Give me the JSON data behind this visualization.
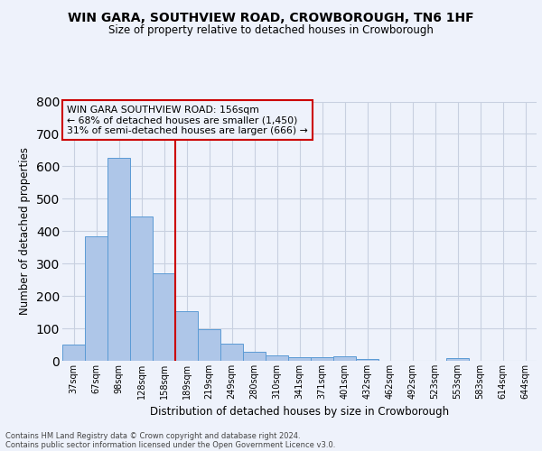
{
  "title1": "WIN GARA, SOUTHVIEW ROAD, CROWBOROUGH, TN6 1HF",
  "title2": "Size of property relative to detached houses in Crowborough",
  "xlabel": "Distribution of detached houses by size in Crowborough",
  "ylabel": "Number of detached properties",
  "footer1": "Contains HM Land Registry data © Crown copyright and database right 2024.",
  "footer2": "Contains public sector information licensed under the Open Government Licence v3.0.",
  "annotation_line1": "WIN GARA SOUTHVIEW ROAD: 156sqm",
  "annotation_line2": "← 68% of detached houses are smaller (1,450)",
  "annotation_line3": "31% of semi-detached houses are larger (666) →",
  "bar_labels": [
    "37sqm",
    "67sqm",
    "98sqm",
    "128sqm",
    "158sqm",
    "189sqm",
    "219sqm",
    "249sqm",
    "280sqm",
    "310sqm",
    "341sqm",
    "371sqm",
    "401sqm",
    "432sqm",
    "462sqm",
    "492sqm",
    "523sqm",
    "553sqm",
    "583sqm",
    "614sqm",
    "644sqm"
  ],
  "bar_values": [
    50,
    385,
    625,
    445,
    270,
    153,
    97,
    52,
    28,
    18,
    11,
    11,
    14,
    6,
    0,
    0,
    0,
    7,
    0,
    0,
    0
  ],
  "bar_color": "#aec6e8",
  "bar_edge_color": "#5b9bd5",
  "vline_x": 4.5,
  "vline_color": "#cc0000",
  "annotation_box_color": "#cc0000",
  "background_color": "#eef2fb",
  "grid_color": "#c8d0e0",
  "ylim": [
    0,
    800
  ],
  "yticks": [
    0,
    100,
    200,
    300,
    400,
    500,
    600,
    700,
    800
  ]
}
